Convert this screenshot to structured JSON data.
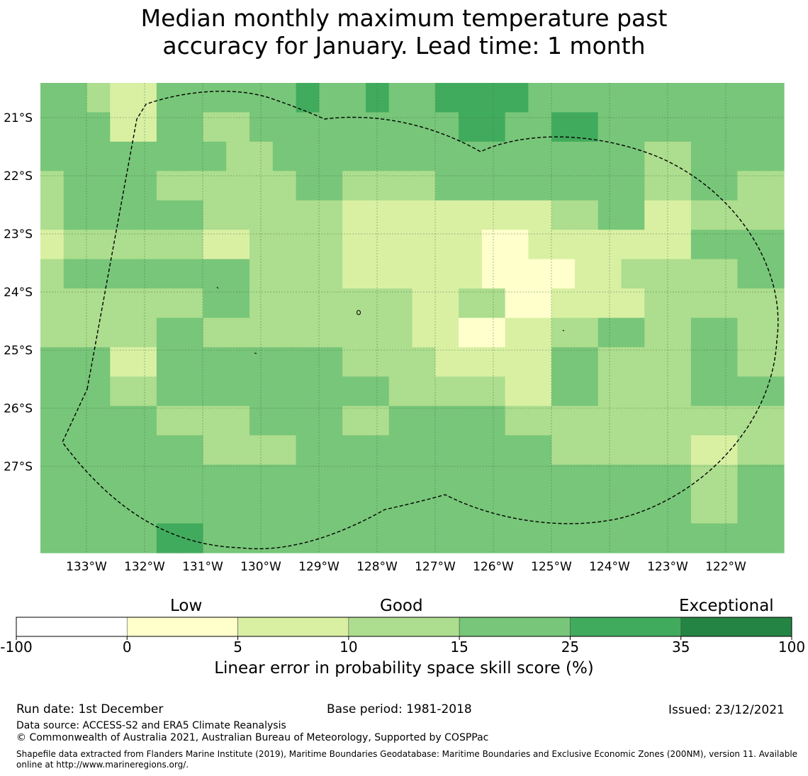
{
  "title": {
    "line1": "Median monthly maximum temperature past",
    "line2": "accuracy for January. Lead time: 1 month"
  },
  "map": {
    "lon_labels": [
      "133°W",
      "132°W",
      "131°W",
      "130°W",
      "129°W",
      "128°W",
      "127°W",
      "126°W",
      "125°W",
      "124°W",
      "123°W",
      "122°W"
    ],
    "lat_labels": [
      "21°S",
      "22°S",
      "23°S",
      "24°S",
      "25°S",
      "26°S",
      "27°S"
    ],
    "grid": [
      [
        4,
        4,
        3,
        2,
        2,
        4,
        4,
        4,
        4,
        4,
        4,
        5,
        4,
        4,
        5,
        4,
        4,
        5,
        5,
        5,
        5,
        4,
        4,
        4,
        4,
        4,
        4,
        4,
        4,
        4,
        4,
        4
      ],
      [
        4,
        4,
        4,
        2,
        2,
        4,
        4,
        3,
        3,
        4,
        4,
        4,
        4,
        4,
        4,
        4,
        4,
        4,
        5,
        5,
        4,
        4,
        5,
        5,
        4,
        4,
        4,
        4,
        4,
        4,
        4,
        4
      ],
      [
        4,
        4,
        4,
        4,
        4,
        4,
        4,
        4,
        3,
        3,
        4,
        4,
        4,
        4,
        4,
        4,
        4,
        4,
        4,
        4,
        4,
        4,
        4,
        4,
        4,
        4,
        3,
        3,
        4,
        4,
        4,
        4
      ],
      [
        3,
        4,
        4,
        4,
        4,
        3,
        3,
        3,
        3,
        3,
        3,
        4,
        4,
        3,
        3,
        3,
        3,
        4,
        4,
        4,
        4,
        4,
        4,
        4,
        4,
        4,
        3,
        3,
        4,
        4,
        3,
        3
      ],
      [
        3,
        4,
        4,
        4,
        4,
        4,
        4,
        3,
        3,
        3,
        3,
        3,
        3,
        2,
        2,
        2,
        2,
        2,
        2,
        2,
        2,
        2,
        3,
        3,
        4,
        4,
        2,
        2,
        3,
        3,
        3,
        3
      ],
      [
        2,
        3,
        3,
        3,
        3,
        3,
        3,
        2,
        2,
        3,
        3,
        3,
        3,
        2,
        2,
        2,
        2,
        2,
        2,
        1,
        1,
        2,
        2,
        2,
        2,
        2,
        2,
        2,
        4,
        4,
        4,
        4
      ],
      [
        3,
        4,
        4,
        4,
        4,
        4,
        4,
        4,
        4,
        3,
        3,
        3,
        3,
        2,
        2,
        2,
        2,
        2,
        2,
        1,
        1,
        1,
        1,
        2,
        2,
        3,
        3,
        3,
        3,
        3,
        4,
        4
      ],
      [
        3,
        3,
        3,
        3,
        3,
        3,
        3,
        4,
        4,
        3,
        3,
        3,
        3,
        3,
        3,
        3,
        2,
        2,
        3,
        3,
        1,
        1,
        2,
        2,
        2,
        2,
        3,
        3,
        3,
        3,
        3,
        3
      ],
      [
        3,
        3,
        3,
        3,
        3,
        4,
        4,
        3,
        3,
        3,
        3,
        3,
        3,
        3,
        3,
        3,
        2,
        2,
        1,
        1,
        2,
        2,
        3,
        3,
        4,
        4,
        3,
        3,
        4,
        4,
        3,
        3
      ],
      [
        4,
        4,
        4,
        2,
        2,
        4,
        4,
        4,
        4,
        4,
        4,
        4,
        4,
        3,
        3,
        3,
        3,
        2,
        2,
        2,
        2,
        2,
        4,
        4,
        3,
        3,
        3,
        3,
        4,
        4,
        3,
        3
      ],
      [
        4,
        4,
        4,
        3,
        3,
        4,
        4,
        4,
        4,
        4,
        4,
        4,
        4,
        4,
        4,
        3,
        3,
        3,
        3,
        3,
        2,
        2,
        4,
        4,
        3,
        3,
        3,
        3,
        4,
        4,
        4,
        4
      ],
      [
        4,
        4,
        4,
        4,
        4,
        3,
        3,
        3,
        3,
        4,
        4,
        4,
        4,
        3,
        3,
        4,
        4,
        4,
        4,
        4,
        3,
        3,
        3,
        3,
        3,
        3,
        3,
        3,
        3,
        3,
        3,
        3
      ],
      [
        4,
        4,
        4,
        4,
        4,
        4,
        4,
        3,
        3,
        3,
        3,
        4,
        4,
        4,
        4,
        4,
        4,
        4,
        4,
        4,
        4,
        4,
        3,
        3,
        3,
        3,
        3,
        3,
        2,
        2,
        3,
        3
      ],
      [
        4,
        4,
        4,
        4,
        4,
        4,
        4,
        4,
        4,
        4,
        4,
        4,
        4,
        4,
        4,
        4,
        4,
        4,
        4,
        4,
        4,
        4,
        4,
        4,
        4,
        4,
        4,
        4,
        3,
        3,
        4,
        4
      ],
      [
        4,
        4,
        4,
        4,
        4,
        4,
        4,
        4,
        4,
        4,
        4,
        4,
        4,
        4,
        4,
        4,
        4,
        4,
        4,
        4,
        4,
        4,
        4,
        4,
        4,
        4,
        4,
        4,
        3,
        3,
        4,
        4
      ],
      [
        4,
        4,
        4,
        4,
        4,
        5,
        5,
        4,
        4,
        4,
        4,
        4,
        4,
        4,
        4,
        4,
        4,
        4,
        4,
        4,
        4,
        4,
        4,
        4,
        4,
        4,
        4,
        4,
        4,
        4,
        4,
        4
      ]
    ]
  },
  "colorbar": {
    "colors": [
      "#ffffff",
      "#ffffcc",
      "#d9f0a3",
      "#addd8e",
      "#78c679",
      "#41ab5d",
      "#238443"
    ],
    "ticks": [
      "-100",
      "0",
      "5",
      "10",
      "15",
      "25",
      "35",
      "100"
    ],
    "category_low": "Low",
    "category_good": "Good",
    "category_exceptional": "Exceptional",
    "axis_title": "Linear error in probability space skill score (%)"
  },
  "footer": {
    "run_date": "Run date: 1st December",
    "base_period": "Base period: 1981-2018",
    "issued": "Issued: 23/12/2021",
    "data_source": "Data source: ACCESS-S2 and ERA5 Climate Reanalysis",
    "copyright": "© Commonwealth of Australia 2021, Australian Bureau of Meteorology, Supported by COSPPac",
    "shapefile_note": "Shapefile data extracted from Flanders Marine Institute (2019), Maritime Boundaries Geodatabase: Maritime Boundaries and Exclusive Economic Zones (200NM), version 11. Available online at http://www.marineregions.org/."
  }
}
